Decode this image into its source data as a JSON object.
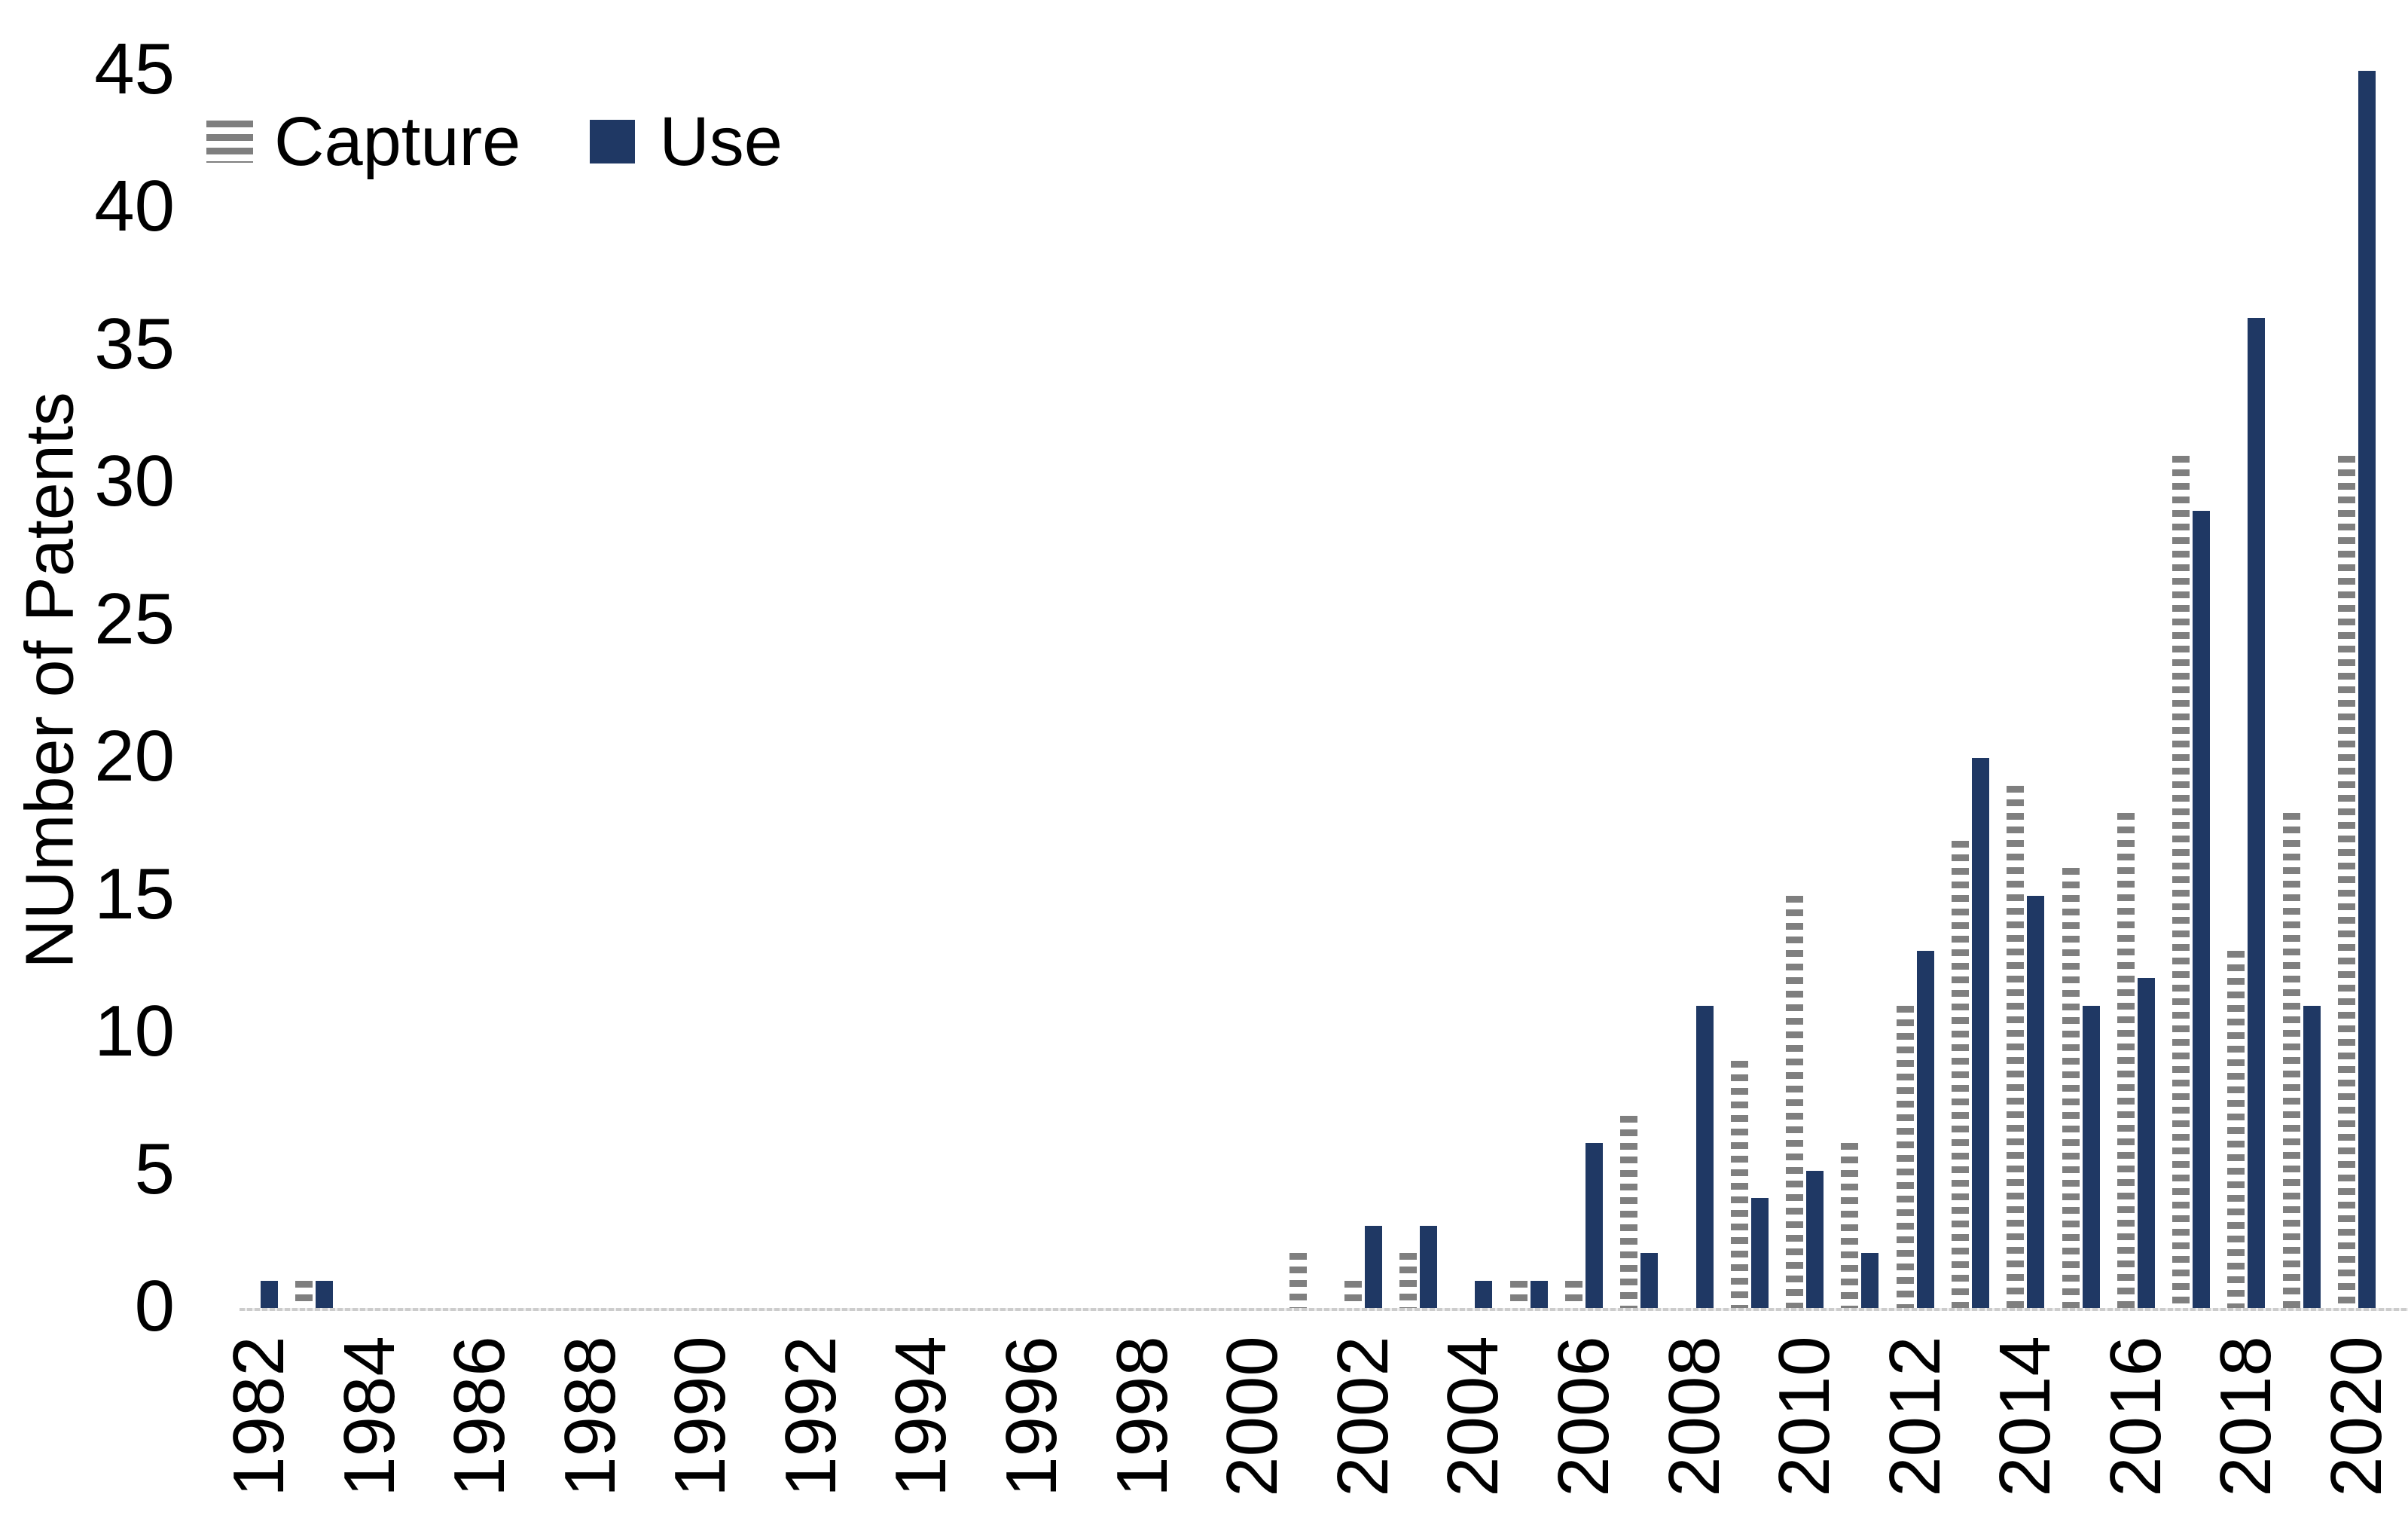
{
  "chart_data": {
    "type": "bar",
    "title": "",
    "ylabel": "NUmber of Patents",
    "xlabel": "",
    "ylim": [
      0,
      45
    ],
    "yticks": [
      0,
      5,
      10,
      15,
      20,
      25,
      30,
      35,
      40,
      45
    ],
    "xticks_labeled": [
      1982,
      1984,
      1986,
      1988,
      1990,
      1992,
      1994,
      1996,
      1998,
      2000,
      2002,
      2004,
      2006,
      2008,
      2010,
      2012,
      2014,
      2016,
      2018,
      2020
    ],
    "categories": [
      1982,
      1983,
      1984,
      1985,
      1986,
      1987,
      1988,
      1989,
      1990,
      1991,
      1992,
      1993,
      1994,
      1995,
      1996,
      1997,
      1998,
      1999,
      2000,
      2001,
      2002,
      2003,
      2004,
      2005,
      2006,
      2007,
      2008,
      2009,
      2010,
      2011,
      2012,
      2013,
      2014,
      2015,
      2016,
      2017,
      2018,
      2019,
      2020
    ],
    "series": [
      {
        "name": "Capture",
        "pattern": "horizontal-stripes",
        "color": "#7f7f7f",
        "values": [
          0,
          1,
          0,
          0,
          0,
          0,
          0,
          0,
          0,
          0,
          0,
          0,
          0,
          0,
          0,
          0,
          0,
          0,
          0,
          2,
          1,
          2,
          0,
          1,
          1,
          7,
          0,
          9,
          15,
          6,
          11,
          17,
          19,
          16,
          18,
          31,
          13,
          18,
          31
        ]
      },
      {
        "name": "Use",
        "pattern": "solid",
        "color": "#1f3864",
        "values": [
          1,
          1,
          0,
          0,
          0,
          0,
          0,
          0,
          0,
          0,
          0,
          0,
          0,
          0,
          0,
          0,
          0,
          0,
          0,
          0,
          3,
          3,
          1,
          1,
          6,
          2,
          11,
          4,
          5,
          2,
          13,
          20,
          15,
          11,
          12,
          29,
          36,
          11,
          45
        ]
      }
    ],
    "legend_position": "top-left",
    "grid": false,
    "axis_color": "#cccccc",
    "text_color": "#000000",
    "background": "#ffffff"
  }
}
